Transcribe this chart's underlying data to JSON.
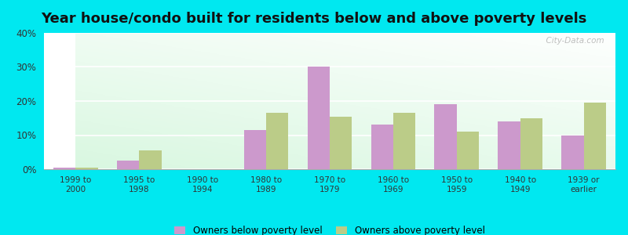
{
  "title": "Year house/condo built for residents below and above poverty levels",
  "categories": [
    "1999 to\n2000",
    "1995 to\n1998",
    "1990 to\n1994",
    "1980 to\n1989",
    "1970 to\n1979",
    "1960 to\n1969",
    "1950 to\n1959",
    "1940 to\n1949",
    "1939 or\nearlier"
  ],
  "below_poverty": [
    0.5,
    2.5,
    0.0,
    11.5,
    30.0,
    13.0,
    19.0,
    14.0,
    10.0
  ],
  "above_poverty": [
    0.5,
    5.5,
    0.0,
    16.5,
    15.5,
    16.5,
    11.0,
    15.0,
    19.5
  ],
  "below_color": "#cc99cc",
  "above_color": "#bbcc88",
  "background_outer": "#00e8f0",
  "ylim": [
    0,
    40
  ],
  "yticks": [
    0,
    10,
    20,
    30,
    40
  ],
  "ytick_labels": [
    "0%",
    "10%",
    "20%",
    "30%",
    "40%"
  ],
  "bar_width": 0.35,
  "title_fontsize": 13,
  "legend_below_label": "Owners below poverty level",
  "legend_above_label": "Owners above poverty level"
}
